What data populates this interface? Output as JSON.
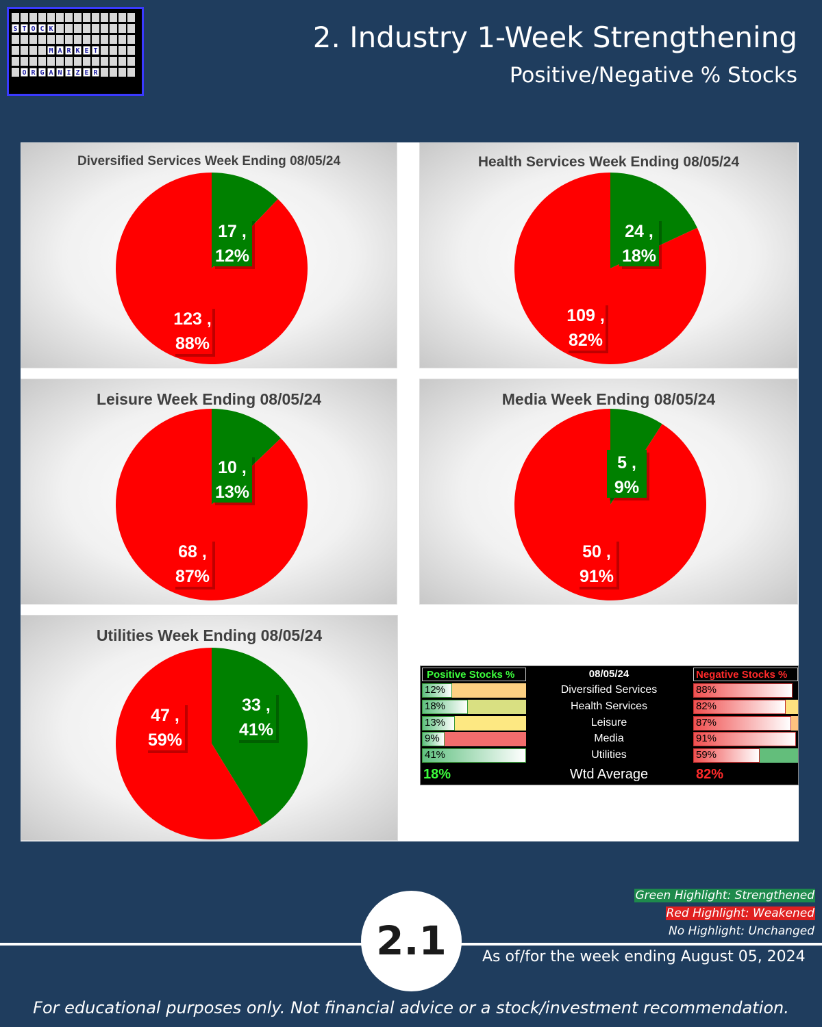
{
  "logo": {
    "row1": [
      "S",
      "T",
      "O",
      "C",
      "K"
    ],
    "row2": [
      "M",
      "A",
      "R",
      "K",
      "E",
      "T"
    ],
    "row3": [
      "O",
      "R",
      "G",
      "A",
      "N",
      "I",
      "Z",
      "E",
      "R"
    ]
  },
  "header": {
    "title": "2. Industry 1-Week Strengthening",
    "subtitle": "Positive/Negative % Stocks"
  },
  "colors": {
    "positive": "#008000",
    "negative": "#ff0000",
    "background": "#1f3d5e"
  },
  "chart_data": [
    {
      "type": "pie",
      "title": "Diversified Services Week Ending 08/05/24",
      "slices": [
        {
          "label": "Positive",
          "count": 17,
          "pct": "12%"
        },
        {
          "label": "Negative",
          "count": 123,
          "pct": "88%"
        }
      ]
    },
    {
      "type": "pie",
      "title": "Health Services Week Ending 08/05/24",
      "slices": [
        {
          "label": "Positive",
          "count": 24,
          "pct": "18%"
        },
        {
          "label": "Negative",
          "count": 109,
          "pct": "82%"
        }
      ]
    },
    {
      "type": "pie",
      "title": "Leisure Week Ending 08/05/24",
      "slices": [
        {
          "label": "Positive",
          "count": 10,
          "pct": "13%"
        },
        {
          "label": "Negative",
          "count": 68,
          "pct": "87%"
        }
      ]
    },
    {
      "type": "pie",
      "title": "Media Week Ending 08/05/24",
      "slices": [
        {
          "label": "Positive",
          "count": 5,
          "pct": "9%"
        },
        {
          "label": "Negative",
          "count": 50,
          "pct": "91%"
        }
      ]
    },
    {
      "type": "pie",
      "title": "Utilities Week Ending 08/05/24",
      "slices": [
        {
          "label": "Positive",
          "count": 33,
          "pct": "41%"
        },
        {
          "label": "Negative",
          "count": 47,
          "pct": "59%"
        }
      ]
    },
    {
      "type": "table",
      "header": {
        "positive": "Positive Stocks %",
        "date": "08/05/24",
        "negative": "Negative Stocks %"
      },
      "rows": [
        {
          "name": "Diversified Services",
          "positive": "12%",
          "negative": "88%",
          "pos_val": 12,
          "neg_val": 88,
          "pos_highlight": "#fdd082",
          "neg_highlight": ""
        },
        {
          "name": "Health Services",
          "positive": "18%",
          "negative": "82%",
          "pos_val": 18,
          "neg_val": 82,
          "pos_highlight": "#d9e082",
          "neg_highlight": "#fde17f"
        },
        {
          "name": "Leisure",
          "positive": "13%",
          "negative": "87%",
          "pos_val": 13,
          "neg_val": 87,
          "pos_highlight": "#fde882",
          "neg_highlight": "#fdc27f"
        },
        {
          "name": "Media",
          "positive": "9%",
          "negative": "91%",
          "pos_val": 9,
          "neg_val": 91,
          "pos_highlight": "#f26d6d",
          "neg_highlight": ""
        },
        {
          "name": "Utilities",
          "positive": "41%",
          "negative": "59%",
          "pos_val": 41,
          "neg_val": 59,
          "pos_highlight": "",
          "neg_highlight": "#63be7b"
        }
      ],
      "footer": {
        "positive": "18%",
        "label": "Wtd Average",
        "negative": "82%"
      }
    }
  ],
  "legend": {
    "green": "Green Highlight: Strengthened",
    "red": "Red Highlight: Weakened",
    "none": "No Highlight: Unchanged"
  },
  "footer": {
    "page_number": "2.1",
    "as_of": "As of/for the week ending August 05, 2024",
    "disclaimer": "For educational purposes only. Not financial advice or a stock/investment recommendation."
  }
}
